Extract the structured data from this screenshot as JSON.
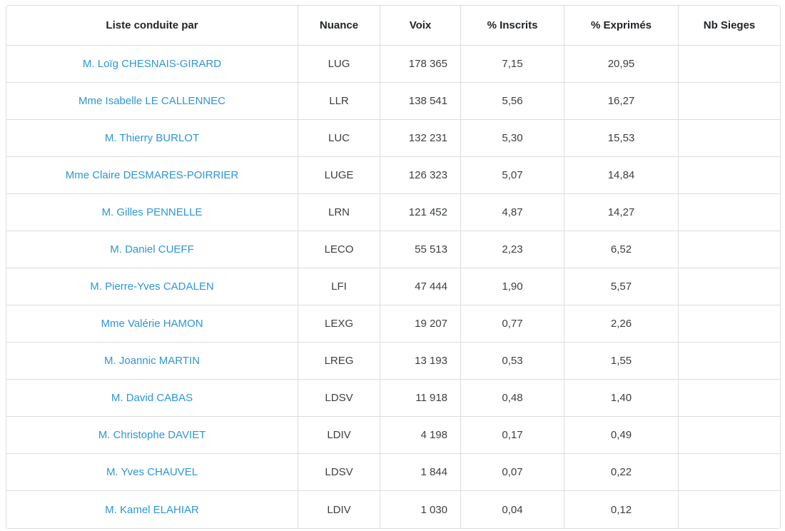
{
  "colors": {
    "link_blue": "#2d96d7",
    "header_text": "#212529",
    "cell_text": "#3c4043",
    "border": "#dddddd",
    "background": "#ffffff"
  },
  "table": {
    "columns": [
      {
        "key": "liste",
        "label": "Liste conduite par"
      },
      {
        "key": "nuance",
        "label": "Nuance"
      },
      {
        "key": "voix",
        "label": "Voix"
      },
      {
        "key": "inscrits",
        "label": "% Inscrits"
      },
      {
        "key": "exprimes",
        "label": "% Exprimés"
      },
      {
        "key": "sieges",
        "label": "Nb Sieges"
      }
    ],
    "rows": [
      {
        "liste": "M. Loïg CHESNAIS-GIRARD",
        "nuance": "LUG",
        "voix": "178 365",
        "inscrits": "7,15",
        "exprimes": "20,95",
        "sieges": ""
      },
      {
        "liste": "Mme Isabelle LE CALLENNEC",
        "nuance": "LLR",
        "voix": "138 541",
        "inscrits": "5,56",
        "exprimes": "16,27",
        "sieges": ""
      },
      {
        "liste": "M. Thierry BURLOT",
        "nuance": "LUC",
        "voix": "132 231",
        "inscrits": "5,30",
        "exprimes": "15,53",
        "sieges": ""
      },
      {
        "liste": "Mme Claire DESMARES-POIRRIER",
        "nuance": "LUGE",
        "voix": "126 323",
        "inscrits": "5,07",
        "exprimes": "14,84",
        "sieges": ""
      },
      {
        "liste": "M. Gilles PENNELLE",
        "nuance": "LRN",
        "voix": "121 452",
        "inscrits": "4,87",
        "exprimes": "14,27",
        "sieges": ""
      },
      {
        "liste": "M. Daniel CUEFF",
        "nuance": "LECO",
        "voix": "55 513",
        "inscrits": "2,23",
        "exprimes": "6,52",
        "sieges": ""
      },
      {
        "liste": "M. Pierre-Yves CADALEN",
        "nuance": "LFI",
        "voix": "47 444",
        "inscrits": "1,90",
        "exprimes": "5,57",
        "sieges": ""
      },
      {
        "liste": "Mme Valérie HAMON",
        "nuance": "LEXG",
        "voix": "19 207",
        "inscrits": "0,77",
        "exprimes": "2,26",
        "sieges": ""
      },
      {
        "liste": "M. Joannic MARTIN",
        "nuance": "LREG",
        "voix": "13 193",
        "inscrits": "0,53",
        "exprimes": "1,55",
        "sieges": ""
      },
      {
        "liste": "M. David CABAS",
        "nuance": "LDSV",
        "voix": "11 918",
        "inscrits": "0,48",
        "exprimes": "1,40",
        "sieges": ""
      },
      {
        "liste": "M. Christophe DAVIET",
        "nuance": "LDIV",
        "voix": "4 198",
        "inscrits": "0,17",
        "exprimes": "0,49",
        "sieges": ""
      },
      {
        "liste": "M. Yves CHAUVEL",
        "nuance": "LDSV",
        "voix": "1 844",
        "inscrits": "0,07",
        "exprimes": "0,22",
        "sieges": ""
      },
      {
        "liste": "M. Kamel ELAHIAR",
        "nuance": "LDIV",
        "voix": "1 030",
        "inscrits": "0,04",
        "exprimes": "0,12",
        "sieges": ""
      }
    ]
  }
}
